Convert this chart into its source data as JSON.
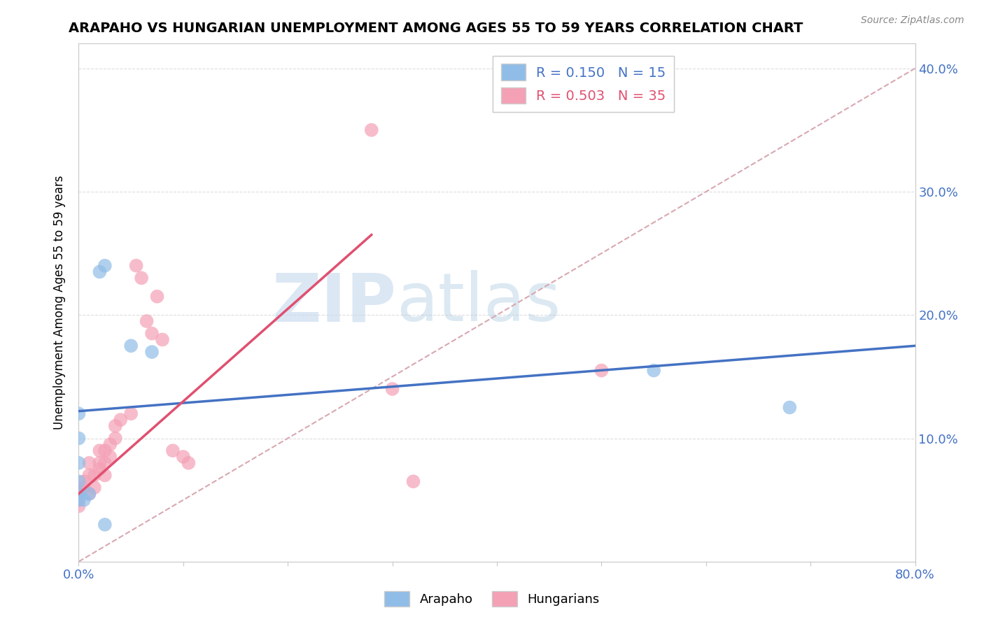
{
  "title": "ARAPAHO VS HUNGARIAN UNEMPLOYMENT AMONG AGES 55 TO 59 YEARS CORRELATION CHART",
  "source": "Source: ZipAtlas.com",
  "ylabel": "Unemployment Among Ages 55 to 59 years",
  "xlim": [
    0.0,
    0.8
  ],
  "ylim": [
    0.0,
    0.42
  ],
  "xticks": [
    0.0,
    0.1,
    0.2,
    0.3,
    0.4,
    0.5,
    0.6,
    0.7,
    0.8
  ],
  "yticks": [
    0.0,
    0.1,
    0.2,
    0.3,
    0.4
  ],
  "xtick_labels": [
    "0.0%",
    "",
    "",
    "",
    "",
    "",
    "",
    "",
    "80.0%"
  ],
  "ytick_right_labels": [
    "",
    "10.0%",
    "20.0%",
    "30.0%",
    "40.0%"
  ],
  "arapaho_color": "#90BDE8",
  "hungarian_color": "#F4A0B5",
  "arapaho_line_color": "#4472C4",
  "hungarian_line_color": "#E05070",
  "diagonal_color": "#D8A8B0",
  "watermark_zip": "ZIP",
  "watermark_atlas": "atlas",
  "arapaho_points": [
    [
      0.0,
      0.12
    ],
    [
      0.0,
      0.1
    ],
    [
      0.0,
      0.08
    ],
    [
      0.0,
      0.065
    ],
    [
      0.0,
      0.055
    ],
    [
      0.0,
      0.05
    ],
    [
      0.005,
      0.05
    ],
    [
      0.01,
      0.055
    ],
    [
      0.02,
      0.235
    ],
    [
      0.025,
      0.24
    ],
    [
      0.05,
      0.175
    ],
    [
      0.07,
      0.17
    ],
    [
      0.55,
      0.155
    ],
    [
      0.68,
      0.125
    ],
    [
      0.025,
      0.03
    ]
  ],
  "hungarian_points": [
    [
      0.0,
      0.045
    ],
    [
      0.0,
      0.05
    ],
    [
      0.0,
      0.055
    ],
    [
      0.005,
      0.06
    ],
    [
      0.005,
      0.065
    ],
    [
      0.01,
      0.055
    ],
    [
      0.01,
      0.07
    ],
    [
      0.01,
      0.08
    ],
    [
      0.015,
      0.06
    ],
    [
      0.015,
      0.07
    ],
    [
      0.02,
      0.075
    ],
    [
      0.02,
      0.08
    ],
    [
      0.02,
      0.09
    ],
    [
      0.025,
      0.07
    ],
    [
      0.025,
      0.08
    ],
    [
      0.025,
      0.09
    ],
    [
      0.03,
      0.085
    ],
    [
      0.03,
      0.095
    ],
    [
      0.035,
      0.1
    ],
    [
      0.035,
      0.11
    ],
    [
      0.04,
      0.115
    ],
    [
      0.05,
      0.12
    ],
    [
      0.055,
      0.24
    ],
    [
      0.06,
      0.23
    ],
    [
      0.065,
      0.195
    ],
    [
      0.07,
      0.185
    ],
    [
      0.075,
      0.215
    ],
    [
      0.08,
      0.18
    ],
    [
      0.09,
      0.09
    ],
    [
      0.1,
      0.085
    ],
    [
      0.105,
      0.08
    ],
    [
      0.28,
      0.35
    ],
    [
      0.3,
      0.14
    ],
    [
      0.32,
      0.065
    ],
    [
      0.5,
      0.155
    ]
  ],
  "arapaho_line": [
    0.0,
    0.8,
    0.122,
    0.175
  ],
  "hungarian_line": [
    0.0,
    0.28,
    0.055,
    0.265
  ],
  "diagonal_line": [
    0.0,
    0.8,
    0.0,
    0.4
  ],
  "background_color": "#FFFFFF",
  "grid_color": "#DDDDDD"
}
